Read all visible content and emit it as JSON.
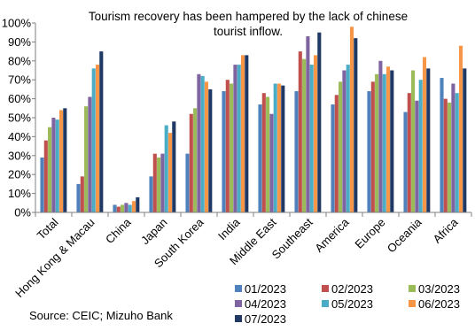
{
  "chart_data": {
    "type": "bar",
    "title": [
      "Tourism recovery has been hampered by the lack of chinese",
      "tourist inflow."
    ],
    "ylim": [
      0,
      100
    ],
    "yticks": [
      "0%",
      "10%",
      "20%",
      "30%",
      "40%",
      "50%",
      "60%",
      "70%",
      "80%",
      "90%",
      "100%"
    ],
    "categories": [
      "Total",
      "Hong Kong & Macau",
      "China",
      "Japan",
      "South Korea",
      "India",
      "Middle East",
      "Southeast",
      "America",
      "Europe",
      "Oceania",
      "Africa"
    ],
    "series": [
      {
        "name": "01/2023",
        "color": "#4f81bd",
        "values": [
          29,
          15,
          4,
          19,
          31,
          64,
          57,
          64,
          57,
          64,
          53,
          71
        ]
      },
      {
        "name": "02/2023",
        "color": "#c0504d",
        "values": [
          38,
          19,
          3,
          31,
          52,
          70,
          63,
          85,
          62,
          69,
          63,
          60
        ]
      },
      {
        "name": "03/2023",
        "color": "#9bbb59",
        "values": [
          45,
          56,
          4,
          29,
          55,
          68,
          61,
          81,
          69,
          73,
          75,
          58
        ]
      },
      {
        "name": "04/2023",
        "color": "#8064a2",
        "values": [
          50,
          61,
          5,
          31,
          73,
          78,
          52,
          93,
          75,
          80,
          59,
          68
        ]
      },
      {
        "name": "05/2023",
        "color": "#4bacc6",
        "values": [
          49,
          76,
          4,
          46,
          72,
          78,
          68,
          78,
          78,
          73,
          70,
          63
        ]
      },
      {
        "name": "06/2023",
        "color": "#f79646",
        "values": [
          54,
          78,
          6,
          42,
          69,
          83,
          68,
          83,
          98,
          77,
          82,
          88
        ]
      },
      {
        "name": "07/2023",
        "color": "#1f3864",
        "values": [
          55,
          85,
          8,
          48,
          65,
          83,
          67,
          95,
          92,
          75,
          76,
          76
        ]
      }
    ],
    "legend": "bottom-right",
    "grid": false
  },
  "source": "Source: CEIC; Mizuho Bank"
}
